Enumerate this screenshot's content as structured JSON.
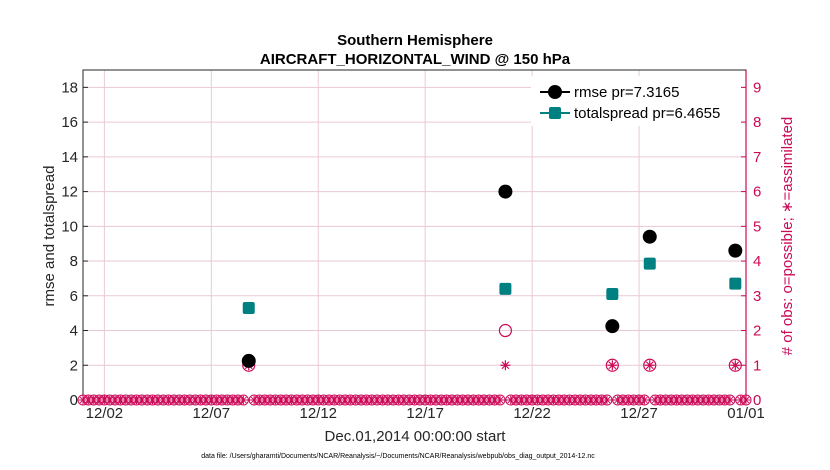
{
  "chart_data": {
    "type": "scatter",
    "title": "Southern Hemisphere",
    "subtitle": "AIRCRAFT_HORIZONTAL_WIND @ 150 hPa",
    "xlabel": "Dec.01,2014 00:00:00 start",
    "ylabel": "rmse and totalspread",
    "y2label": "# of obs: o=possible; ∗=assimilated",
    "xlim": [
      1,
      32
    ],
    "ylim": [
      0,
      19
    ],
    "y2lim": [
      0,
      9.5
    ],
    "xticks": [
      {
        "day": 2,
        "label": "12/02"
      },
      {
        "day": 7,
        "label": "12/07"
      },
      {
        "day": 12,
        "label": "12/12"
      },
      {
        "day": 17,
        "label": "12/17"
      },
      {
        "day": 22,
        "label": "12/22"
      },
      {
        "day": 27,
        "label": "12/27"
      },
      {
        "day": 32,
        "label": "01/01"
      }
    ],
    "yticks": [
      0,
      2,
      4,
      6,
      8,
      10,
      12,
      14,
      16,
      18
    ],
    "y2ticks": [
      0,
      1,
      2,
      3,
      4,
      5,
      6,
      7,
      8,
      9
    ],
    "series": [
      {
        "name": "rmse pr=7.3165",
        "color": "#000000",
        "marker": "circle",
        "points": [
          {
            "x": 8.75,
            "y": 2.25
          },
          {
            "x": 20.75,
            "y": 12.0
          },
          {
            "x": 25.75,
            "y": 4.25
          },
          {
            "x": 27.5,
            "y": 9.4
          },
          {
            "x": 31.5,
            "y": 8.6
          }
        ]
      },
      {
        "name": "totalspread pr=6.4655",
        "color": "#008080",
        "marker": "square",
        "points": [
          {
            "x": 8.75,
            "y": 5.3
          },
          {
            "x": 20.75,
            "y": 6.4
          },
          {
            "x": 25.75,
            "y": 6.1
          },
          {
            "x": 27.5,
            "y": 7.85
          },
          {
            "x": 31.5,
            "y": 6.7
          }
        ]
      }
    ],
    "obs_possible": {
      "color": "#cc0a57",
      "x": [
        8.75,
        20.75,
        25.75,
        27.5,
        31.5
      ],
      "y": [
        1,
        2,
        1,
        1,
        1
      ]
    },
    "obs_assimilated": {
      "color": "#cc0a57",
      "x": [
        8.75,
        20.75,
        25.75,
        27.5,
        31.5
      ],
      "y": [
        1,
        1,
        1,
        1,
        1
      ]
    },
    "zero_markers_step_days": 0.25,
    "legend_position": "top-right",
    "grid": true,
    "footnote": "data file: /Users/gharamti/Documents/NCAR/Reanalysis/~/Documents/NCAR/Reanalysis/webpub/obs_diag_output_2014-12.nc"
  }
}
